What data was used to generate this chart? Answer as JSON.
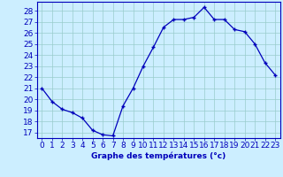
{
  "x": [
    0,
    1,
    2,
    3,
    4,
    5,
    6,
    7,
    8,
    9,
    10,
    11,
    12,
    13,
    14,
    15,
    16,
    17,
    18,
    19,
    20,
    21,
    22,
    23
  ],
  "y": [
    21.0,
    19.8,
    19.1,
    18.8,
    18.3,
    17.2,
    16.8,
    16.7,
    19.4,
    21.0,
    23.0,
    24.7,
    26.5,
    27.2,
    27.2,
    27.4,
    28.3,
    27.2,
    27.2,
    26.3,
    26.1,
    25.0,
    23.3,
    22.2
  ],
  "line_color": "#0000bb",
  "marker": "+",
  "bg_color": "#cceeff",
  "grid_color": "#99cccc",
  "axis_color": "#0000bb",
  "tick_color": "#0000bb",
  "label_color": "#0000bb",
  "xlabel": "Graphe des températures (°c)",
  "xlim": [
    -0.5,
    23.5
  ],
  "ylim": [
    16.5,
    28.8
  ],
  "yticks": [
    17,
    18,
    19,
    20,
    21,
    22,
    23,
    24,
    25,
    26,
    27,
    28
  ],
  "xticks": [
    0,
    1,
    2,
    3,
    4,
    5,
    6,
    7,
    8,
    9,
    10,
    11,
    12,
    13,
    14,
    15,
    16,
    17,
    18,
    19,
    20,
    21,
    22,
    23
  ],
  "axis_fontsize": 6.5
}
